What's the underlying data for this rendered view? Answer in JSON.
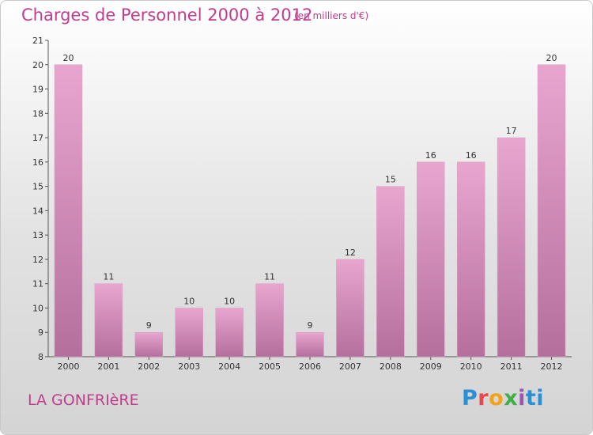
{
  "header": {
    "title": "Charges de Personnel 2000 à 2012",
    "subtitle": "(en milliers d'€)"
  },
  "footer": {
    "commune": "LA GONFRIèRE",
    "brand": "Proxiti"
  },
  "colors": {
    "title": "#c23c8c",
    "bar_top": "#e8a6cf",
    "bar_bottom": "#b56f9d"
  },
  "chart_data": {
    "type": "bar",
    "categories": [
      "2000",
      "2001",
      "2002",
      "2003",
      "2004",
      "2005",
      "2006",
      "2007",
      "2008",
      "2009",
      "2010",
      "2011",
      "2012"
    ],
    "values": [
      20,
      11,
      9,
      10,
      10,
      11,
      9,
      12,
      15,
      16,
      16,
      17,
      20
    ],
    "title": "Charges de Personnel 2000 à 2012",
    "subtitle": "(en milliers d'€)",
    "ylim": [
      8,
      21
    ],
    "yticks": [
      8,
      9,
      10,
      11,
      12,
      13,
      14,
      15,
      16,
      17,
      18,
      19,
      20,
      21
    ],
    "grid": false,
    "legend": "none"
  }
}
